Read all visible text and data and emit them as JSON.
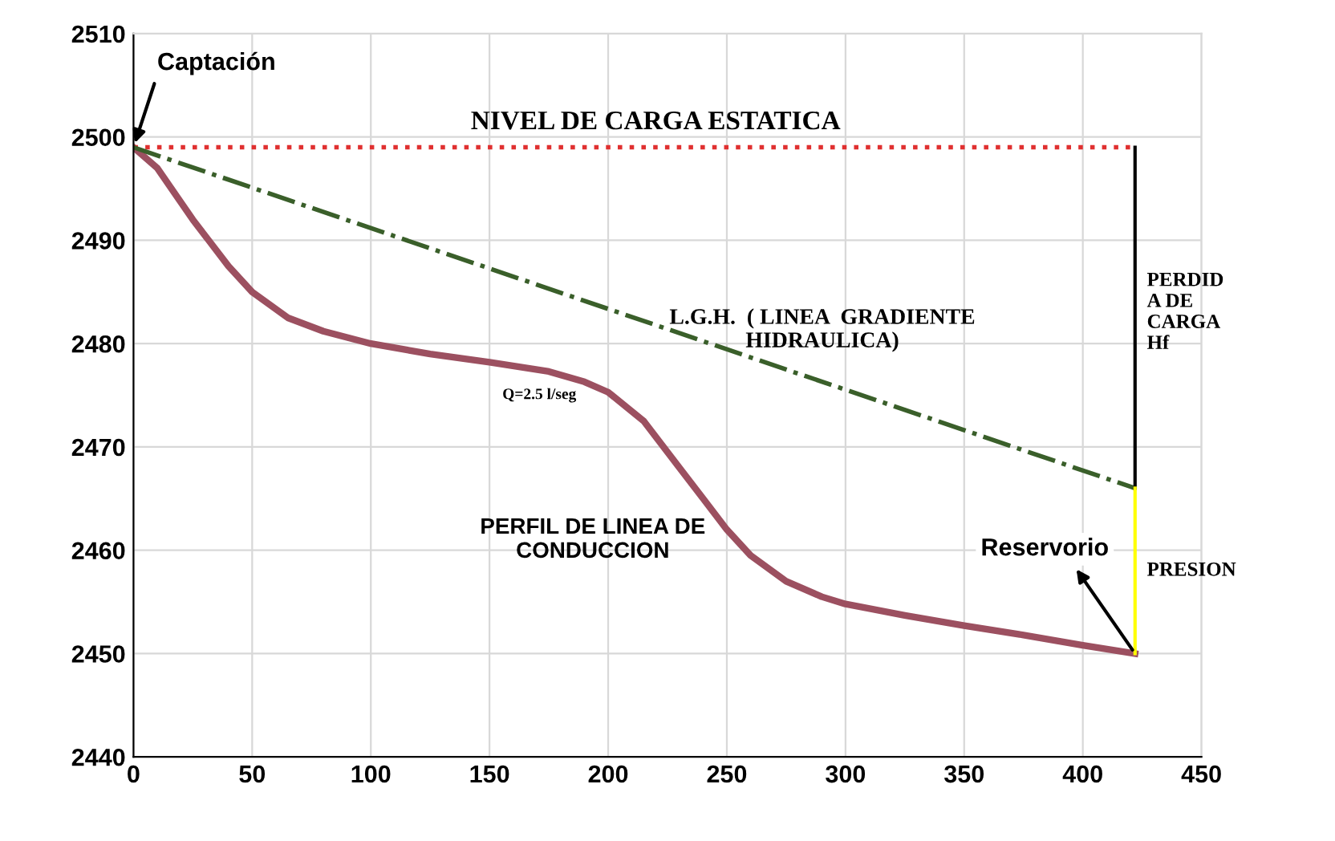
{
  "chart_data": {
    "type": "line",
    "xlim": [
      0,
      450
    ],
    "ylim": [
      2440,
      2510
    ],
    "xticks": [
      0,
      50,
      100,
      150,
      200,
      250,
      300,
      350,
      400,
      450
    ],
    "yticks": [
      2440,
      2450,
      2460,
      2470,
      2480,
      2490,
      2500,
      2510
    ],
    "grid": true,
    "legend": false,
    "marker": "none",
    "series": [
      {
        "color": "#9c5060",
        "line_style": "solid",
        "x": [
          0,
          10,
          25,
          40,
          50,
          65,
          80,
          100,
          125,
          150,
          175,
          190,
          200,
          215,
          230,
          240,
          250,
          260,
          275,
          290,
          300,
          325,
          350,
          375,
          400,
          422
        ],
        "values": [
          2499,
          2497,
          2492,
          2487.5,
          2485,
          2482.5,
          2481.2,
          2480,
          2479,
          2478.2,
          2477.3,
          2476.3,
          2475.3,
          2472.5,
          2468,
          2465,
          2462,
          2459.5,
          2457,
          2455.5,
          2454.8,
          2453.7,
          2452.7,
          2451.8,
          2450.8,
          2450
        ]
      },
      {
        "color": "#e03030",
        "line_style": "dotted",
        "x": [
          0,
          420
        ],
        "values": [
          2499,
          2499
        ]
      },
      {
        "color": "#3a5f2a",
        "line_style": "dashdot",
        "x": [
          0,
          422
        ],
        "values": [
          2499,
          2466
        ]
      },
      {
        "color": "#000000",
        "line_style": "solid",
        "x": [
          422,
          422
        ],
        "values": [
          2499,
          2466
        ]
      },
      {
        "color": "#ffff00",
        "line_style": "solid",
        "x": [
          422,
          422
        ],
        "values": [
          2466,
          2450
        ]
      }
    ],
    "annotations": [
      {
        "text": "Captación",
        "x": 0,
        "y": 2499
      },
      {
        "text": "Reservorio",
        "x": 422,
        "y": 2450
      },
      {
        "text": "NIVEL DE CARGA ESTATICA",
        "x": 220,
        "y": 2499
      },
      "L.G.H.  ( LINEA  GRADIENTE\nHIDRAULICA)",
      "Q=2.5 l/seg",
      "PERFIL DE LINEA DE\nCONDUCCION",
      {
        "text": "PERDID\nA DE\nCARGA\nHf",
        "x": 422,
        "y": 2483
      },
      {
        "text": "PRESION",
        "x": 422,
        "y": 2458
      }
    ]
  }
}
